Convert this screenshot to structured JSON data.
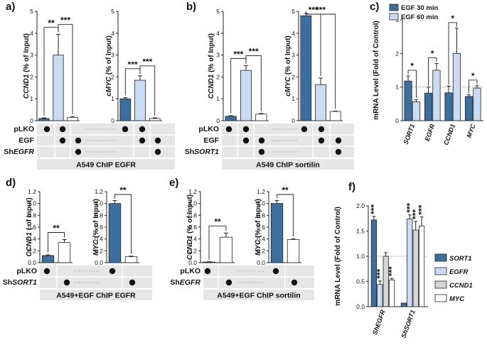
{
  "colors": {
    "dark_blue": "#3a6fa0",
    "light_blue": "#c9dcf4",
    "grey": "#d6d6d6",
    "white": "#ffffff",
    "axis": "#222222",
    "table_bg": "#e6e6e6"
  },
  "chart_data": [
    {
      "panel": "a)",
      "type": "bar",
      "ylabel": "CCND1 (% of Input)",
      "ylabel_italic": "CCND1",
      "ylabel_rest": " (% of Input)",
      "ylim": [
        0,
        5
      ],
      "yticks": [
        "0",
        "1",
        "2",
        "3",
        "4",
        "5"
      ],
      "categories": [
        "pLKO",
        "EGF",
        "ShEGFR"
      ],
      "values": [
        0.1,
        3.0,
        0.15
      ],
      "errors": [
        0.03,
        0.95,
        0.04
      ],
      "colors": [
        "dark_blue",
        "light_blue",
        "white"
      ],
      "sig": [
        {
          "from": 0,
          "to": 1,
          "label": "**"
        },
        {
          "from": 1,
          "to": 2,
          "label": "***"
        }
      ]
    },
    {
      "panel": "",
      "type": "bar",
      "ylabel": "cMYC (% of Input)",
      "ylabel_italic": "cMYC",
      "ylabel_rest": " (% of Input)",
      "ylim": [
        0,
        5
      ],
      "yticks": [
        "0",
        "1",
        "2",
        "3",
        "4",
        "5"
      ],
      "categories": [
        "pLKO",
        "EGF",
        "ShEGFR"
      ],
      "values": [
        1.0,
        1.85,
        0.1
      ],
      "errors": [
        0.05,
        0.2,
        0.03
      ],
      "colors": [
        "dark_blue",
        "light_blue",
        "white"
      ],
      "sig": [
        {
          "from": 0,
          "to": 1,
          "label": "***"
        },
        {
          "from": 1,
          "to": 2,
          "label": "***"
        }
      ]
    },
    {
      "panel": "b)",
      "type": "bar",
      "ylabel": "CCND1 (% of Input)",
      "ylabel_italic": "CCND1",
      "ylabel_rest": " (% of Input)",
      "ylim": [
        0,
        5
      ],
      "yticks": [
        "0",
        "1",
        "2",
        "3",
        "4",
        "5"
      ],
      "categories": [
        "pLKO",
        "EGF",
        "ShSORT1"
      ],
      "values": [
        0.2,
        2.3,
        0.3
      ],
      "errors": [
        0.03,
        0.22,
        0.03
      ],
      "colors": [
        "dark_blue",
        "light_blue",
        "white"
      ],
      "sig": [
        {
          "from": 0,
          "to": 1,
          "label": "***"
        },
        {
          "from": 1,
          "to": 2,
          "label": "***"
        }
      ]
    },
    {
      "panel": "",
      "type": "bar",
      "ylabel": "cMYC (% of Input)",
      "ylabel_italic": "cMYC",
      "ylabel_rest": " (% of Input)",
      "ylim": [
        0,
        5
      ],
      "yticks": [
        "0",
        "1",
        "2",
        "3",
        "4",
        "5"
      ],
      "categories": [
        "pLKO",
        "EGF",
        "ShSORT1"
      ],
      "values": [
        4.8,
        1.65,
        0.42
      ],
      "errors": [
        0.1,
        0.3,
        0.02
      ],
      "colors": [
        "dark_blue",
        "light_blue",
        "white"
      ],
      "sig": [
        {
          "from": 0,
          "to": 1,
          "label": "***"
        },
        {
          "from": 0,
          "to": 2,
          "label": "***"
        }
      ]
    },
    {
      "panel": "c)",
      "type": "bar",
      "ylabel": "mRNA Level (Fold of Control)",
      "ylim": [
        0,
        3
      ],
      "yticks": [
        "0",
        "1",
        "2",
        "3"
      ],
      "dotted_ref": 1.0,
      "categories": [
        "SORT1",
        "EGFR",
        "CCND1",
        "MYC"
      ],
      "series": [
        {
          "name": "EGF 30 min",
          "color": "dark_blue",
          "values": [
            1.18,
            0.82,
            0.83,
            0.72
          ],
          "errors": [
            0.15,
            0.18,
            0.2,
            0.05
          ]
        },
        {
          "name": "EGF 60 min",
          "color": "light_blue",
          "values": [
            0.56,
            1.5,
            2.0,
            0.97
          ],
          "errors": [
            0.07,
            0.2,
            0.75,
            0.07
          ]
        }
      ],
      "sig": [
        "*",
        "*",
        "*",
        "*"
      ]
    },
    {
      "panel": "d)",
      "type": "bar",
      "ylabel": "CCND1 ( of Input)",
      "ylabel_italic": "CCND1",
      "ylabel_rest": " ( of Input)",
      "ylim": [
        0,
        1.2
      ],
      "yticks": [
        "0.0",
        "0.2",
        "0.4",
        "0.6",
        "0.8",
        "1.0",
        "1.2"
      ],
      "categories": [
        "pLKO",
        "ShSORT1"
      ],
      "values": [
        0.12,
        0.34
      ],
      "errors": [
        0.01,
        0.05
      ],
      "colors": [
        "dark_blue",
        "white"
      ],
      "sig": [
        {
          "from": 0,
          "to": 1,
          "label": "**"
        }
      ]
    },
    {
      "panel": "",
      "type": "bar",
      "ylabel": "MYC (% of Input)",
      "ylabel_italic": "MYC",
      "ylabel_rest": " (% of Input)",
      "ylim": [
        0,
        1.2
      ],
      "yticks": [
        "0.0",
        "0.2",
        "0.4",
        "0.6",
        "0.8",
        "1.0",
        "1.2"
      ],
      "categories": [
        "pLKO",
        "ShSORT1"
      ],
      "values": [
        1.0,
        0.1
      ],
      "errors": [
        0.05,
        0.01
      ],
      "colors": [
        "dark_blue",
        "white"
      ],
      "sig": [
        {
          "from": 0,
          "to": 1,
          "label": "**"
        }
      ]
    },
    {
      "panel": "e)",
      "type": "bar",
      "ylabel": "CCND1 (% of Input)",
      "ylabel_italic": "CCND1",
      "ylabel_rest": " (% of Input)",
      "ylim": [
        0,
        1.2
      ],
      "yticks": [
        "0.0",
        "0.2",
        "0.4",
        "0.6",
        "0.8",
        "1.0",
        "1.2"
      ],
      "categories": [
        "pLKO",
        "ShEGFR"
      ],
      "values": [
        0.01,
        0.43
      ],
      "errors": [
        0.005,
        0.07
      ],
      "colors": [
        "dark_blue",
        "white"
      ],
      "sig": [
        {
          "from": 0,
          "to": 1,
          "label": "**"
        }
      ]
    },
    {
      "panel": "",
      "type": "bar",
      "ylabel": "MYC (% of Input)",
      "ylabel_italic": "MYC",
      "ylabel_rest": " (% of Input)",
      "ylim": [
        0,
        1.2
      ],
      "yticks": [
        "0.0",
        "0.2",
        "0.4",
        "0.6",
        "0.8",
        "1.0",
        "1.2"
      ],
      "categories": [
        "pLKO",
        "ShEGFR"
      ],
      "values": [
        1.0,
        0.39
      ],
      "errors": [
        0.05,
        0.015
      ],
      "colors": [
        "dark_blue",
        "white"
      ],
      "sig": [
        {
          "from": 0,
          "to": 1,
          "label": "**"
        }
      ]
    },
    {
      "panel": "f)",
      "type": "bar",
      "ylabel": "mRNA Level (Fold of Control)",
      "ylim": [
        0,
        2.0
      ],
      "yticks": [
        "0.0",
        "0.5",
        "1.0",
        "1.5",
        "2.0"
      ],
      "dotted_ref": 1.0,
      "categories": [
        "ShEGFR",
        "ShSORT1"
      ],
      "series": [
        {
          "name": "SORT1",
          "color": "dark_blue",
          "values": [
            1.72,
            0.07
          ],
          "errors": [
            0.07,
            0.0
          ]
        },
        {
          "name": "EGFR",
          "color": "light_blue",
          "values": [
            0.44,
            1.74
          ],
          "errors": [
            0.07,
            0.08
          ]
        },
        {
          "name": "CCND1",
          "color": "grey",
          "values": [
            1.0,
            1.52
          ],
          "errors": [
            0.07,
            0.17
          ]
        },
        {
          "name": "MYC",
          "color": "white",
          "values": [
            0.53,
            1.6
          ],
          "errors": [
            0.03,
            0.18
          ]
        }
      ],
      "sig": [
        [
          "***",
          "***",
          "",
          "***"
        ],
        [
          "",
          "***",
          "***",
          "***"
        ]
      ]
    }
  ],
  "tables": {
    "a": {
      "rows": [
        {
          "label": "pLKO",
          "dots": [
            1,
            1,
            0,
            1,
            1,
            0
          ]
        },
        {
          "label": "EGF",
          "dots": [
            0,
            1,
            1,
            0,
            1,
            1
          ]
        },
        {
          "label_plain": "Sh",
          "label_italic": "EGFR",
          "dots": [
            0,
            0,
            1,
            0,
            0,
            1
          ]
        }
      ],
      "caption": "A549 ChIP EGFR"
    },
    "b": {
      "rows": [
        {
          "label": "pLKO",
          "dots": [
            1,
            1,
            0,
            1,
            1,
            0
          ]
        },
        {
          "label": "EGF",
          "dots": [
            0,
            1,
            1,
            0,
            1,
            1
          ]
        },
        {
          "label_plain": "Sh",
          "label_italic": "SORT1",
          "dots": [
            0,
            0,
            1,
            0,
            0,
            1
          ]
        }
      ],
      "caption": "A549 ChIP sortilin"
    },
    "d": {
      "rows": [
        {
          "label": "pLKO",
          "dots": [
            1,
            0,
            1,
            0
          ]
        },
        {
          "label_plain": "Sh",
          "label_italic": "SORT1",
          "dots": [
            0,
            1,
            0,
            1
          ]
        }
      ],
      "caption": "A549+EGF ChIP EGFR"
    },
    "e": {
      "rows": [
        {
          "label": "pLKO",
          "dots": [
            1,
            0,
            1,
            0
          ]
        },
        {
          "label_plain": "Sh",
          "label_italic": "EGFR",
          "dots": [
            0,
            1,
            0,
            1
          ]
        }
      ],
      "caption": "A549+EGF ChIP sortilin"
    }
  }
}
